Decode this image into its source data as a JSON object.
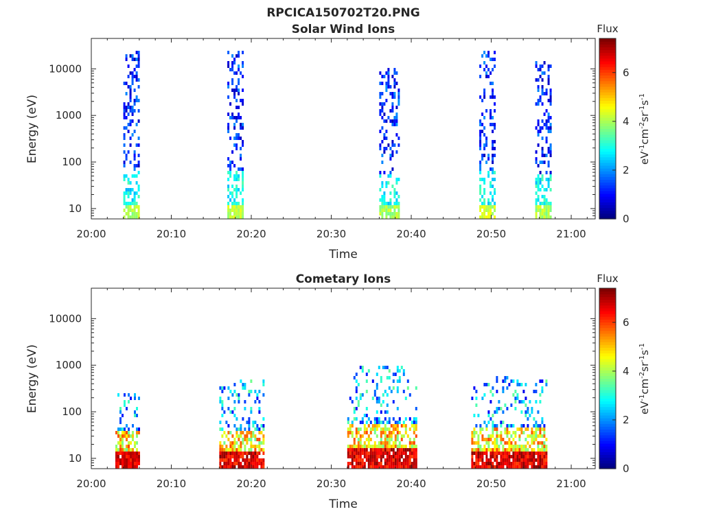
{
  "figure": {
    "title": "RPCICA150702T20.PNG"
  },
  "chart_data": [
    {
      "type": "heatmap",
      "title": "Solar Wind Ions",
      "xlabel": "Time",
      "ylabel": "Energy (eV)",
      "x_ticks": [
        "20:00",
        "20:10",
        "20:20",
        "20:30",
        "20:40",
        "20:50",
        "21:00"
      ],
      "x_range": [
        "20:00",
        "21:03"
      ],
      "y_scale": "log",
      "y_ticks": [
        "10",
        "100",
        "1000",
        "10000"
      ],
      "y_range": [
        6,
        45000
      ],
      "colorbar": {
        "title": "Flux",
        "label": "eV-1cm-2sr-1s-1",
        "ticks": [
          "0",
          "2",
          "4",
          "6"
        ],
        "range": [
          0,
          7.4
        ]
      },
      "bursts": [
        {
          "t_start": "20:04.0",
          "t_end": "20:06.0",
          "max_energy": 25000,
          "base_flux": 2.6,
          "low_flux": 3.6
        },
        {
          "t_start": "20:17.0",
          "t_end": "20:19.0",
          "max_energy": 25000,
          "base_flux": 2.8,
          "low_flux": 3.8
        },
        {
          "t_start": "20:36.0",
          "t_end": "20:38.5",
          "max_energy": 12000,
          "base_flux": 2.6,
          "low_flux": 3.6
        },
        {
          "t_start": "20:48.5",
          "t_end": "20:50.5",
          "max_energy": 25000,
          "base_flux": 2.6,
          "low_flux": 3.8
        },
        {
          "t_start": "20:55.5",
          "t_end": "20:57.5",
          "max_energy": 15000,
          "base_flux": 2.6,
          "low_flux": 3.6
        }
      ]
    },
    {
      "type": "heatmap",
      "title": "Cometary Ions",
      "xlabel": "Time",
      "ylabel": "Energy (eV)",
      "x_ticks": [
        "20:00",
        "20:10",
        "20:20",
        "20:30",
        "20:40",
        "20:50",
        "21:00"
      ],
      "x_range": [
        "20:00",
        "21:03"
      ],
      "y_scale": "log",
      "y_ticks": [
        "10",
        "100",
        "1000",
        "10000"
      ],
      "y_range": [
        6,
        45000
      ],
      "colorbar": {
        "title": "Flux",
        "label": "eV-1cm-2sr-1s-1",
        "ticks": [
          "0",
          "2",
          "4",
          "6"
        ],
        "range": [
          0,
          7.4
        ]
      },
      "bursts": [
        {
          "t_start": "20:03.0",
          "t_end": "20:06.0",
          "max_energy": 400,
          "base_flux": 6.2,
          "low_flux": 6.8
        },
        {
          "t_start": "20:16.0",
          "t_end": "20:21.5",
          "max_energy": 500,
          "base_flux": 6.0,
          "low_flux": 7.0
        },
        {
          "t_start": "20:32.0",
          "t_end": "20:40.5",
          "max_energy": 1100,
          "base_flux": 6.0,
          "low_flux": 7.0
        },
        {
          "t_start": "20:47.5",
          "t_end": "20:57.0",
          "max_energy": 600,
          "base_flux": 6.0,
          "low_flux": 7.0
        }
      ]
    }
  ]
}
